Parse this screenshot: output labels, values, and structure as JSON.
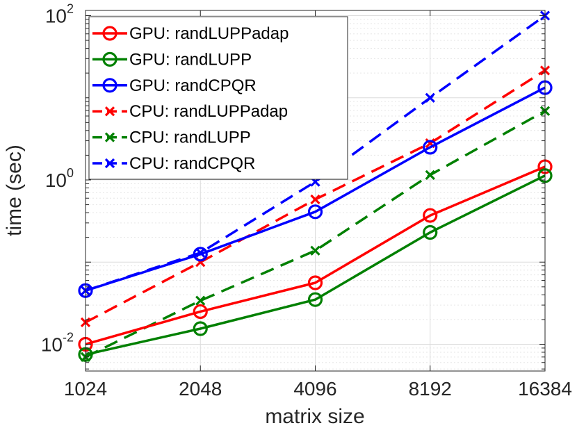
{
  "chart_data": {
    "type": "line",
    "xscale": "log2",
    "yscale": "log10",
    "x": [
      1024,
      2048,
      4096,
      8192,
      16384
    ],
    "x_tick_labels": [
      "1024",
      "2048",
      "4096",
      "8192",
      "16384"
    ],
    "xlabel": "matrix size",
    "ylabel": "time (sec)",
    "ylim": [
      0.0065,
      100
    ],
    "y_ticks": [
      {
        "value": 0.01,
        "base": "10",
        "exp": "-2"
      },
      {
        "value": 1,
        "base": "10",
        "exp": "0"
      },
      {
        "value": 100,
        "base": "10",
        "exp": "2"
      }
    ],
    "grid": true,
    "legend_position": "top-left",
    "series": [
      {
        "name": "GPU: randLUPPadap",
        "color": "#ff0000",
        "marker": "circle",
        "dash": "solid",
        "values": [
          0.01,
          0.025,
          0.056,
          0.37,
          1.45
        ]
      },
      {
        "name": "GPU: randLUPP",
        "color": "#008000",
        "marker": "circle",
        "dash": "solid",
        "values": [
          0.0075,
          0.0155,
          0.035,
          0.23,
          1.13
        ]
      },
      {
        "name": "GPU: randCPQR",
        "color": "#0000ff",
        "marker": "circle",
        "dash": "solid",
        "values": [
          0.045,
          0.125,
          0.41,
          2.5,
          13.3
        ]
      },
      {
        "name": "CPU: randLUPPadap",
        "color": "#ff0000",
        "marker": "cross",
        "dash": "dashed",
        "values": [
          0.0185,
          0.1,
          0.58,
          2.8,
          21.5
        ]
      },
      {
        "name": "CPU: randLUPP",
        "color": "#008000",
        "marker": "cross",
        "dash": "dashed",
        "values": [
          0.007,
          0.034,
          0.138,
          1.15,
          6.9
        ]
      },
      {
        "name": "CPU: randCPQR",
        "color": "#0000ff",
        "marker": "cross",
        "dash": "dashed",
        "values": [
          0.045,
          0.13,
          0.95,
          10.0,
          100.0
        ]
      }
    ]
  }
}
